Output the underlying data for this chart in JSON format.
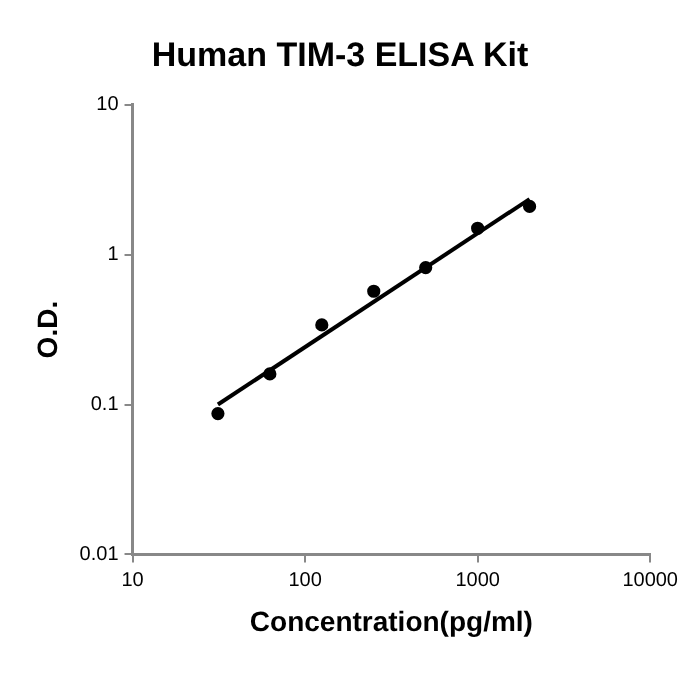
{
  "chart_data": {
    "type": "scatter",
    "title": "Human TIM-3 ELISA Kit",
    "xlabel": "Concentration(pg/ml)",
    "ylabel": "O.D.",
    "log": "xy",
    "grid": false,
    "legend": false,
    "marker": "circle",
    "xlim": [
      10,
      10000
    ],
    "xticks": [
      10,
      100,
      1000,
      10000
    ],
    "ylim": [
      0.01,
      10
    ],
    "yticks": [
      0.01,
      0.1,
      1,
      10
    ],
    "series": [
      {
        "type": "scatter",
        "color": "#000000",
        "x": [
          31.25,
          62.5,
          125,
          250,
          500,
          1000,
          2000
        ],
        "values": [
          0.087,
          0.16,
          0.34,
          0.57,
          0.82,
          1.5,
          2.1
        ]
      },
      {
        "type": "line",
        "color": "#000000",
        "line_style": "solid",
        "marker": "none",
        "x": [
          31.25,
          2000
        ],
        "values": [
          0.1,
          2.35
        ]
      }
    ]
  }
}
